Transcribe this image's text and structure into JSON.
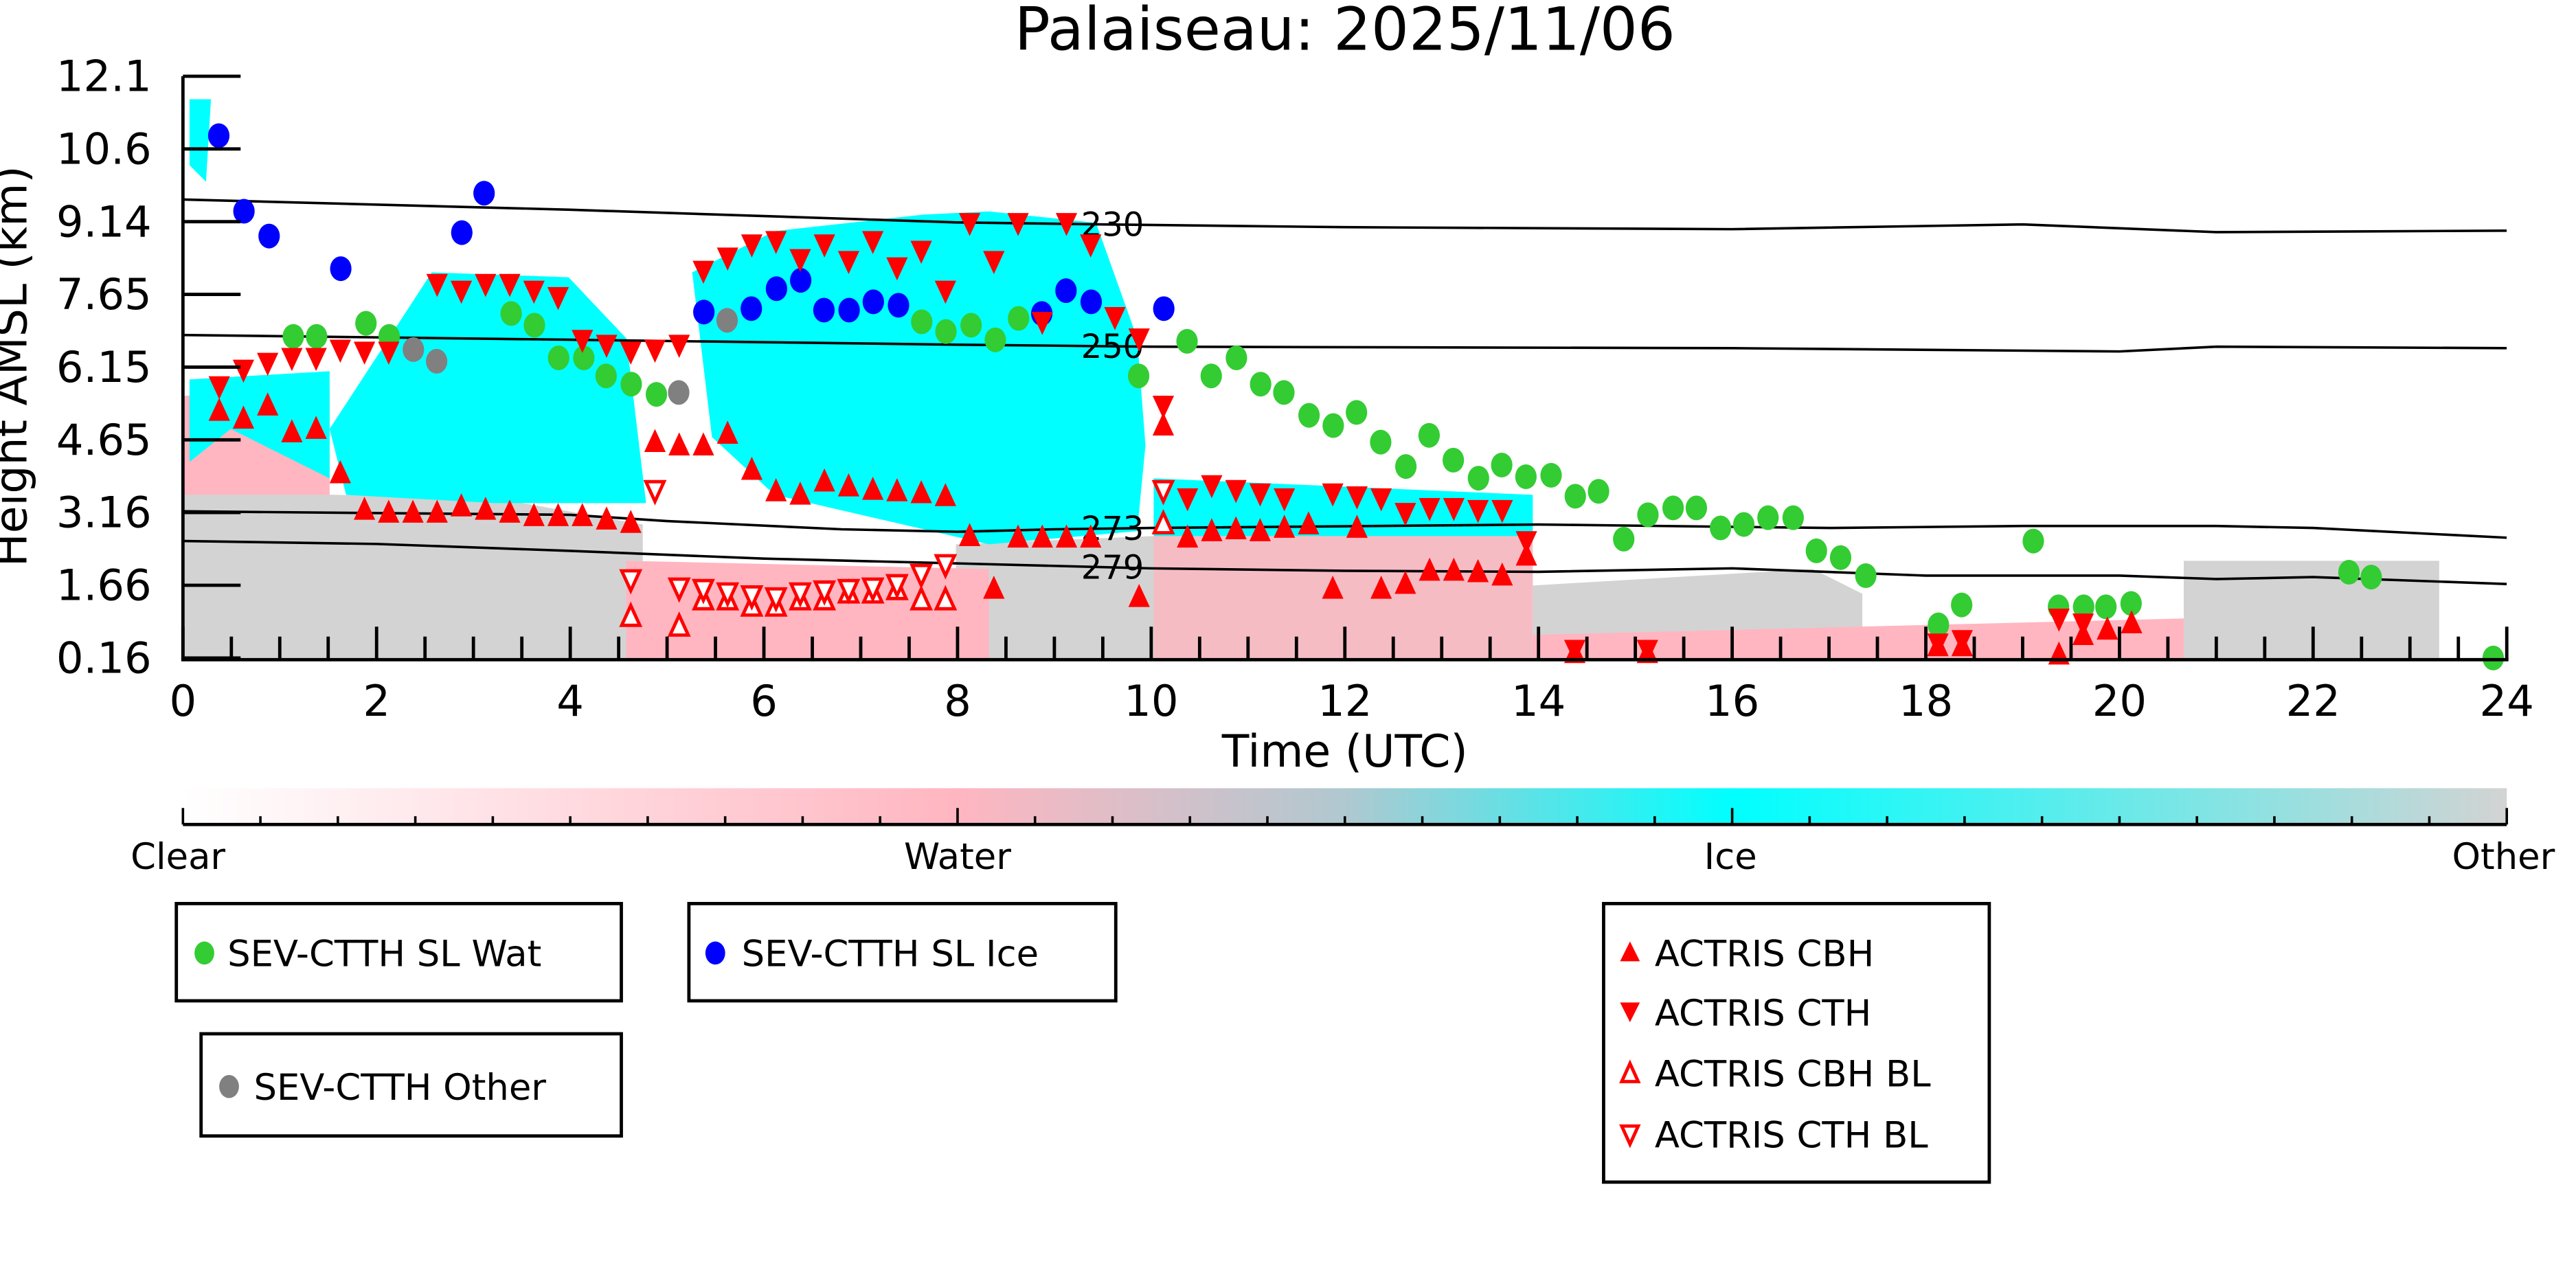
{
  "chart_data": {
    "type": "scatter",
    "title": "Palaiseau: 2025/11/06",
    "xlabel": "Time (UTC)",
    "ylabel": "Height AMSL (km)",
    "xlim": [
      0,
      24
    ],
    "ylim": [
      0.16,
      12.1
    ],
    "xticks": [
      "0",
      "2",
      "4",
      "6",
      "8",
      "10",
      "12",
      "14",
      "16",
      "18",
      "20",
      "22",
      "24"
    ],
    "yticks": [
      "0.16",
      "1.66",
      "3.16",
      "4.65",
      "6.15",
      "7.65",
      "9.14",
      "10.6",
      "12.1"
    ],
    "colorbar": {
      "labels": [
        "Clear",
        "Water",
        "Ice",
        "Other"
      ],
      "colors": [
        "#ffffff",
        "#ffb6c1",
        "#00ffff",
        "#d3d3d3"
      ]
    },
    "contours": [
      {
        "label": "230",
        "points": [
          [
            0,
            9.57
          ],
          [
            4,
            9.36
          ],
          [
            8,
            9.1
          ],
          [
            9.5,
            9.06
          ],
          [
            12,
            9.0
          ],
          [
            16,
            8.96
          ],
          [
            19,
            9.06
          ],
          [
            21,
            8.9
          ],
          [
            24,
            8.93
          ]
        ]
      },
      {
        "label": "250",
        "points": [
          [
            0,
            6.79
          ],
          [
            4,
            6.69
          ],
          [
            8,
            6.59
          ],
          [
            10,
            6.55
          ],
          [
            16,
            6.52
          ],
          [
            20,
            6.45
          ],
          [
            21,
            6.55
          ],
          [
            24,
            6.52
          ]
        ]
      },
      {
        "label": "273",
        "points": [
          [
            0,
            3.17
          ],
          [
            4,
            3.1
          ],
          [
            5,
            2.97
          ],
          [
            6.8,
            2.8
          ],
          [
            8,
            2.75
          ],
          [
            9,
            2.8
          ],
          [
            10,
            2.83
          ],
          [
            14,
            2.9
          ],
          [
            17,
            2.83
          ],
          [
            19,
            2.87
          ],
          [
            21,
            2.87
          ],
          [
            22,
            2.83
          ],
          [
            24,
            2.63
          ]
        ]
      },
      {
        "label": "279",
        "points": [
          [
            0,
            2.56
          ],
          [
            2,
            2.5
          ],
          [
            4,
            2.36
          ],
          [
            6,
            2.2
          ],
          [
            8,
            2.1
          ],
          [
            10,
            2.0
          ],
          [
            12,
            1.95
          ],
          [
            14,
            1.93
          ],
          [
            16,
            2.0
          ],
          [
            18,
            1.85
          ],
          [
            20,
            1.85
          ],
          [
            21,
            1.78
          ],
          [
            22,
            1.82
          ],
          [
            24,
            1.68
          ]
        ]
      }
    ],
    "series": [
      {
        "name": "SEV-CTTH SL Wat",
        "marker": "circle",
        "color": "#33cc33",
        "points": [
          [
            1.14,
            6.76
          ],
          [
            1.38,
            6.76
          ],
          [
            1.89,
            7.03
          ],
          [
            2.13,
            6.76
          ],
          [
            3.39,
            7.23
          ],
          [
            3.63,
            6.99
          ],
          [
            3.88,
            6.32
          ],
          [
            4.14,
            6.32
          ],
          [
            4.37,
            5.95
          ],
          [
            4.63,
            5.78
          ],
          [
            4.89,
            5.57
          ],
          [
            7.63,
            7.06
          ],
          [
            7.88,
            6.86
          ],
          [
            8.14,
            6.99
          ],
          [
            8.39,
            6.69
          ],
          [
            8.63,
            7.13
          ],
          [
            9.87,
            5.95
          ],
          [
            10.37,
            6.66
          ],
          [
            10.62,
            5.95
          ],
          [
            10.88,
            6.32
          ],
          [
            11.13,
            5.78
          ],
          [
            11.37,
            5.61
          ],
          [
            11.63,
            5.14
          ],
          [
            11.88,
            4.93
          ],
          [
            12.12,
            5.2
          ],
          [
            12.37,
            4.59
          ],
          [
            12.63,
            4.09
          ],
          [
            12.87,
            4.73
          ],
          [
            13.12,
            4.22
          ],
          [
            13.38,
            3.85
          ],
          [
            13.62,
            4.12
          ],
          [
            13.87,
            3.88
          ],
          [
            14.13,
            3.91
          ],
          [
            14.38,
            3.48
          ],
          [
            14.62,
            3.58
          ],
          [
            14.88,
            2.6
          ],
          [
            15.13,
            3.1
          ],
          [
            15.39,
            3.24
          ],
          [
            15.63,
            3.24
          ],
          [
            15.88,
            2.83
          ],
          [
            16.12,
            2.9
          ],
          [
            16.37,
            3.04
          ],
          [
            16.63,
            3.04
          ],
          [
            16.87,
            2.36
          ],
          [
            17.12,
            2.22
          ],
          [
            17.38,
            1.85
          ],
          [
            18.13,
            0.84
          ],
          [
            18.37,
            1.25
          ],
          [
            19.11,
            2.56
          ],
          [
            19.37,
            1.21
          ],
          [
            19.63,
            1.21
          ],
          [
            19.86,
            1.21
          ],
          [
            20.12,
            1.28
          ],
          [
            22.37,
            1.92
          ],
          [
            22.6,
            1.82
          ],
          [
            23.86,
            0.16
          ]
        ]
      },
      {
        "name": "SEV-CTTH SL Ice",
        "marker": "circle",
        "color": "#0000ff",
        "points": [
          [
            0.37,
            10.88
          ],
          [
            0.63,
            9.33
          ],
          [
            0.89,
            8.82
          ],
          [
            1.63,
            8.15
          ],
          [
            2.88,
            8.89
          ],
          [
            3.11,
            9.7
          ],
          [
            5.38,
            7.26
          ],
          [
            5.87,
            7.33
          ],
          [
            6.13,
            7.74
          ],
          [
            6.38,
            7.91
          ],
          [
            6.62,
            7.3
          ],
          [
            6.88,
            7.3
          ],
          [
            7.13,
            7.47
          ],
          [
            7.39,
            7.4
          ],
          [
            8.87,
            7.23
          ],
          [
            9.12,
            7.7
          ],
          [
            9.38,
            7.47
          ],
          [
            10.13,
            7.33
          ]
        ]
      },
      {
        "name": "SEV-CTTH Other",
        "marker": "circle",
        "color": "#808080",
        "points": [
          [
            2.38,
            6.49
          ],
          [
            2.62,
            6.25
          ],
          [
            5.12,
            5.61
          ],
          [
            5.62,
            7.09
          ]
        ]
      },
      {
        "name": "ACTRIS CBH",
        "marker": "triangle-up",
        "color": "#ff0000",
        "points": [
          [
            0.375,
            5.23
          ],
          [
            0.625,
            5.07
          ],
          [
            0.875,
            5.34
          ],
          [
            1.125,
            4.79
          ],
          [
            1.375,
            4.86
          ],
          [
            1.625,
            3.95
          ],
          [
            1.875,
            3.2
          ],
          [
            2.125,
            3.14
          ],
          [
            2.375,
            3.14
          ],
          [
            2.625,
            3.14
          ],
          [
            2.875,
            3.27
          ],
          [
            3.125,
            3.2
          ],
          [
            3.375,
            3.14
          ],
          [
            3.625,
            3.07
          ],
          [
            3.875,
            3.07
          ],
          [
            4.125,
            3.07
          ],
          [
            4.375,
            3.0
          ],
          [
            4.625,
            2.93
          ],
          [
            4.875,
            4.59
          ],
          [
            5.125,
            4.52
          ],
          [
            5.375,
            4.52
          ],
          [
            5.625,
            4.76
          ],
          [
            5.875,
            4.02
          ],
          [
            6.125,
            3.58
          ],
          [
            6.375,
            3.51
          ],
          [
            6.625,
            3.78
          ],
          [
            6.875,
            3.68
          ],
          [
            7.125,
            3.61
          ],
          [
            7.375,
            3.58
          ],
          [
            7.625,
            3.54
          ],
          [
            7.875,
            3.48
          ],
          [
            8.125,
            2.66
          ],
          [
            8.375,
            1.58
          ],
          [
            8.625,
            2.63
          ],
          [
            8.875,
            2.63
          ],
          [
            9.125,
            2.63
          ],
          [
            9.375,
            2.63
          ],
          [
            9.875,
            1.41
          ],
          [
            10.125,
            4.93
          ],
          [
            10.375,
            2.63
          ],
          [
            10.625,
            2.76
          ],
          [
            10.875,
            2.8
          ],
          [
            11.125,
            2.76
          ],
          [
            11.375,
            2.83
          ],
          [
            11.625,
            2.9
          ],
          [
            11.875,
            1.58
          ],
          [
            12.125,
            2.83
          ],
          [
            12.375,
            1.58
          ],
          [
            12.625,
            1.68
          ],
          [
            12.875,
            1.95
          ],
          [
            13.125,
            1.95
          ],
          [
            13.375,
            1.92
          ],
          [
            13.625,
            1.85
          ],
          [
            13.875,
            2.26
          ],
          [
            14.375,
            0.26
          ],
          [
            15.125,
            0.26
          ],
          [
            18.125,
            0.4
          ],
          [
            18.375,
            0.4
          ],
          [
            19.375,
            0.23
          ],
          [
            19.625,
            0.63
          ],
          [
            19.875,
            0.74
          ],
          [
            20.125,
            0.87
          ]
        ]
      },
      {
        "name": "ACTRIS CTH",
        "marker": "triangle-down",
        "color": "#ff0000",
        "points": [
          [
            0.375,
            5.74
          ],
          [
            0.625,
            6.08
          ],
          [
            0.875,
            6.22
          ],
          [
            1.125,
            6.32
          ],
          [
            1.375,
            6.32
          ],
          [
            1.625,
            6.49
          ],
          [
            1.875,
            6.45
          ],
          [
            2.125,
            6.45
          ],
          [
            2.625,
            7.84
          ],
          [
            2.875,
            7.7
          ],
          [
            3.125,
            7.84
          ],
          [
            3.375,
            7.84
          ],
          [
            3.625,
            7.7
          ],
          [
            3.875,
            7.57
          ],
          [
            4.125,
            6.69
          ],
          [
            4.375,
            6.59
          ],
          [
            4.625,
            6.45
          ],
          [
            4.875,
            6.49
          ],
          [
            5.125,
            6.59
          ],
          [
            5.375,
            8.11
          ],
          [
            5.625,
            8.38
          ],
          [
            5.875,
            8.65
          ],
          [
            6.125,
            8.72
          ],
          [
            6.375,
            8.35
          ],
          [
            6.625,
            8.65
          ],
          [
            6.875,
            8.31
          ],
          [
            7.125,
            8.72
          ],
          [
            7.375,
            8.18
          ],
          [
            7.625,
            8.52
          ],
          [
            7.875,
            7.7
          ],
          [
            8.125,
            9.09
          ],
          [
            8.375,
            8.31
          ],
          [
            8.625,
            9.09
          ],
          [
            8.875,
            7.06
          ],
          [
            9.125,
            9.09
          ],
          [
            9.375,
            8.65
          ],
          [
            9.625,
            7.16
          ],
          [
            9.875,
            6.72
          ],
          [
            10.125,
            5.34
          ],
          [
            10.375,
            3.44
          ],
          [
            10.625,
            3.71
          ],
          [
            10.875,
            3.61
          ],
          [
            11.125,
            3.54
          ],
          [
            11.375,
            3.44
          ],
          [
            11.875,
            3.54
          ],
          [
            12.125,
            3.48
          ],
          [
            12.375,
            3.44
          ],
          [
            12.625,
            3.14
          ],
          [
            12.875,
            3.24
          ],
          [
            13.125,
            3.24
          ],
          [
            13.375,
            3.2
          ],
          [
            13.625,
            3.2
          ],
          [
            13.875,
            2.56
          ],
          [
            14.375,
            0.33
          ],
          [
            15.125,
            0.33
          ],
          [
            18.125,
            0.46
          ],
          [
            18.375,
            0.53
          ],
          [
            19.375,
            0.97
          ],
          [
            19.625,
            0.87
          ]
        ]
      },
      {
        "name": "ACTRIS CBH BL",
        "marker": "triangle-up-open",
        "color": "#ff0000",
        "points": [
          [
            4.625,
            1.0
          ],
          [
            5.125,
            0.8
          ],
          [
            5.375,
            1.34
          ],
          [
            5.625,
            1.34
          ],
          [
            5.875,
            1.21
          ],
          [
            6.125,
            1.21
          ],
          [
            6.375,
            1.34
          ],
          [
            6.625,
            1.34
          ],
          [
            6.875,
            1.48
          ],
          [
            7.125,
            1.48
          ],
          [
            7.375,
            1.55
          ],
          [
            7.625,
            1.34
          ],
          [
            7.875,
            1.34
          ],
          [
            10.125,
            2.9
          ]
        ]
      },
      {
        "name": "ACTRIS CTH BL",
        "marker": "triangle-down-open",
        "color": "#ff0000",
        "points": [
          [
            4.625,
            1.78
          ],
          [
            4.875,
            3.61
          ],
          [
            5.125,
            1.61
          ],
          [
            5.375,
            1.58
          ],
          [
            5.625,
            1.51
          ],
          [
            5.875,
            1.45
          ],
          [
            6.125,
            1.41
          ],
          [
            6.375,
            1.51
          ],
          [
            6.625,
            1.55
          ],
          [
            6.875,
            1.58
          ],
          [
            7.125,
            1.61
          ],
          [
            7.375,
            1.68
          ],
          [
            7.625,
            1.89
          ],
          [
            7.875,
            2.09
          ],
          [
            10.125,
            3.61
          ]
        ]
      }
    ],
    "legends": [
      {
        "entries": [
          "SEV-CTTH SL Wat"
        ]
      },
      {
        "entries": [
          "SEV-CTTH SL Ice"
        ]
      },
      {
        "entries": [
          "SEV-CTTH Other"
        ]
      },
      {
        "entries": [
          "ACTRIS CBH",
          "ACTRIS CTH",
          "ACTRIS CBH BL",
          "ACTRIS CTH BL"
        ]
      }
    ]
  }
}
